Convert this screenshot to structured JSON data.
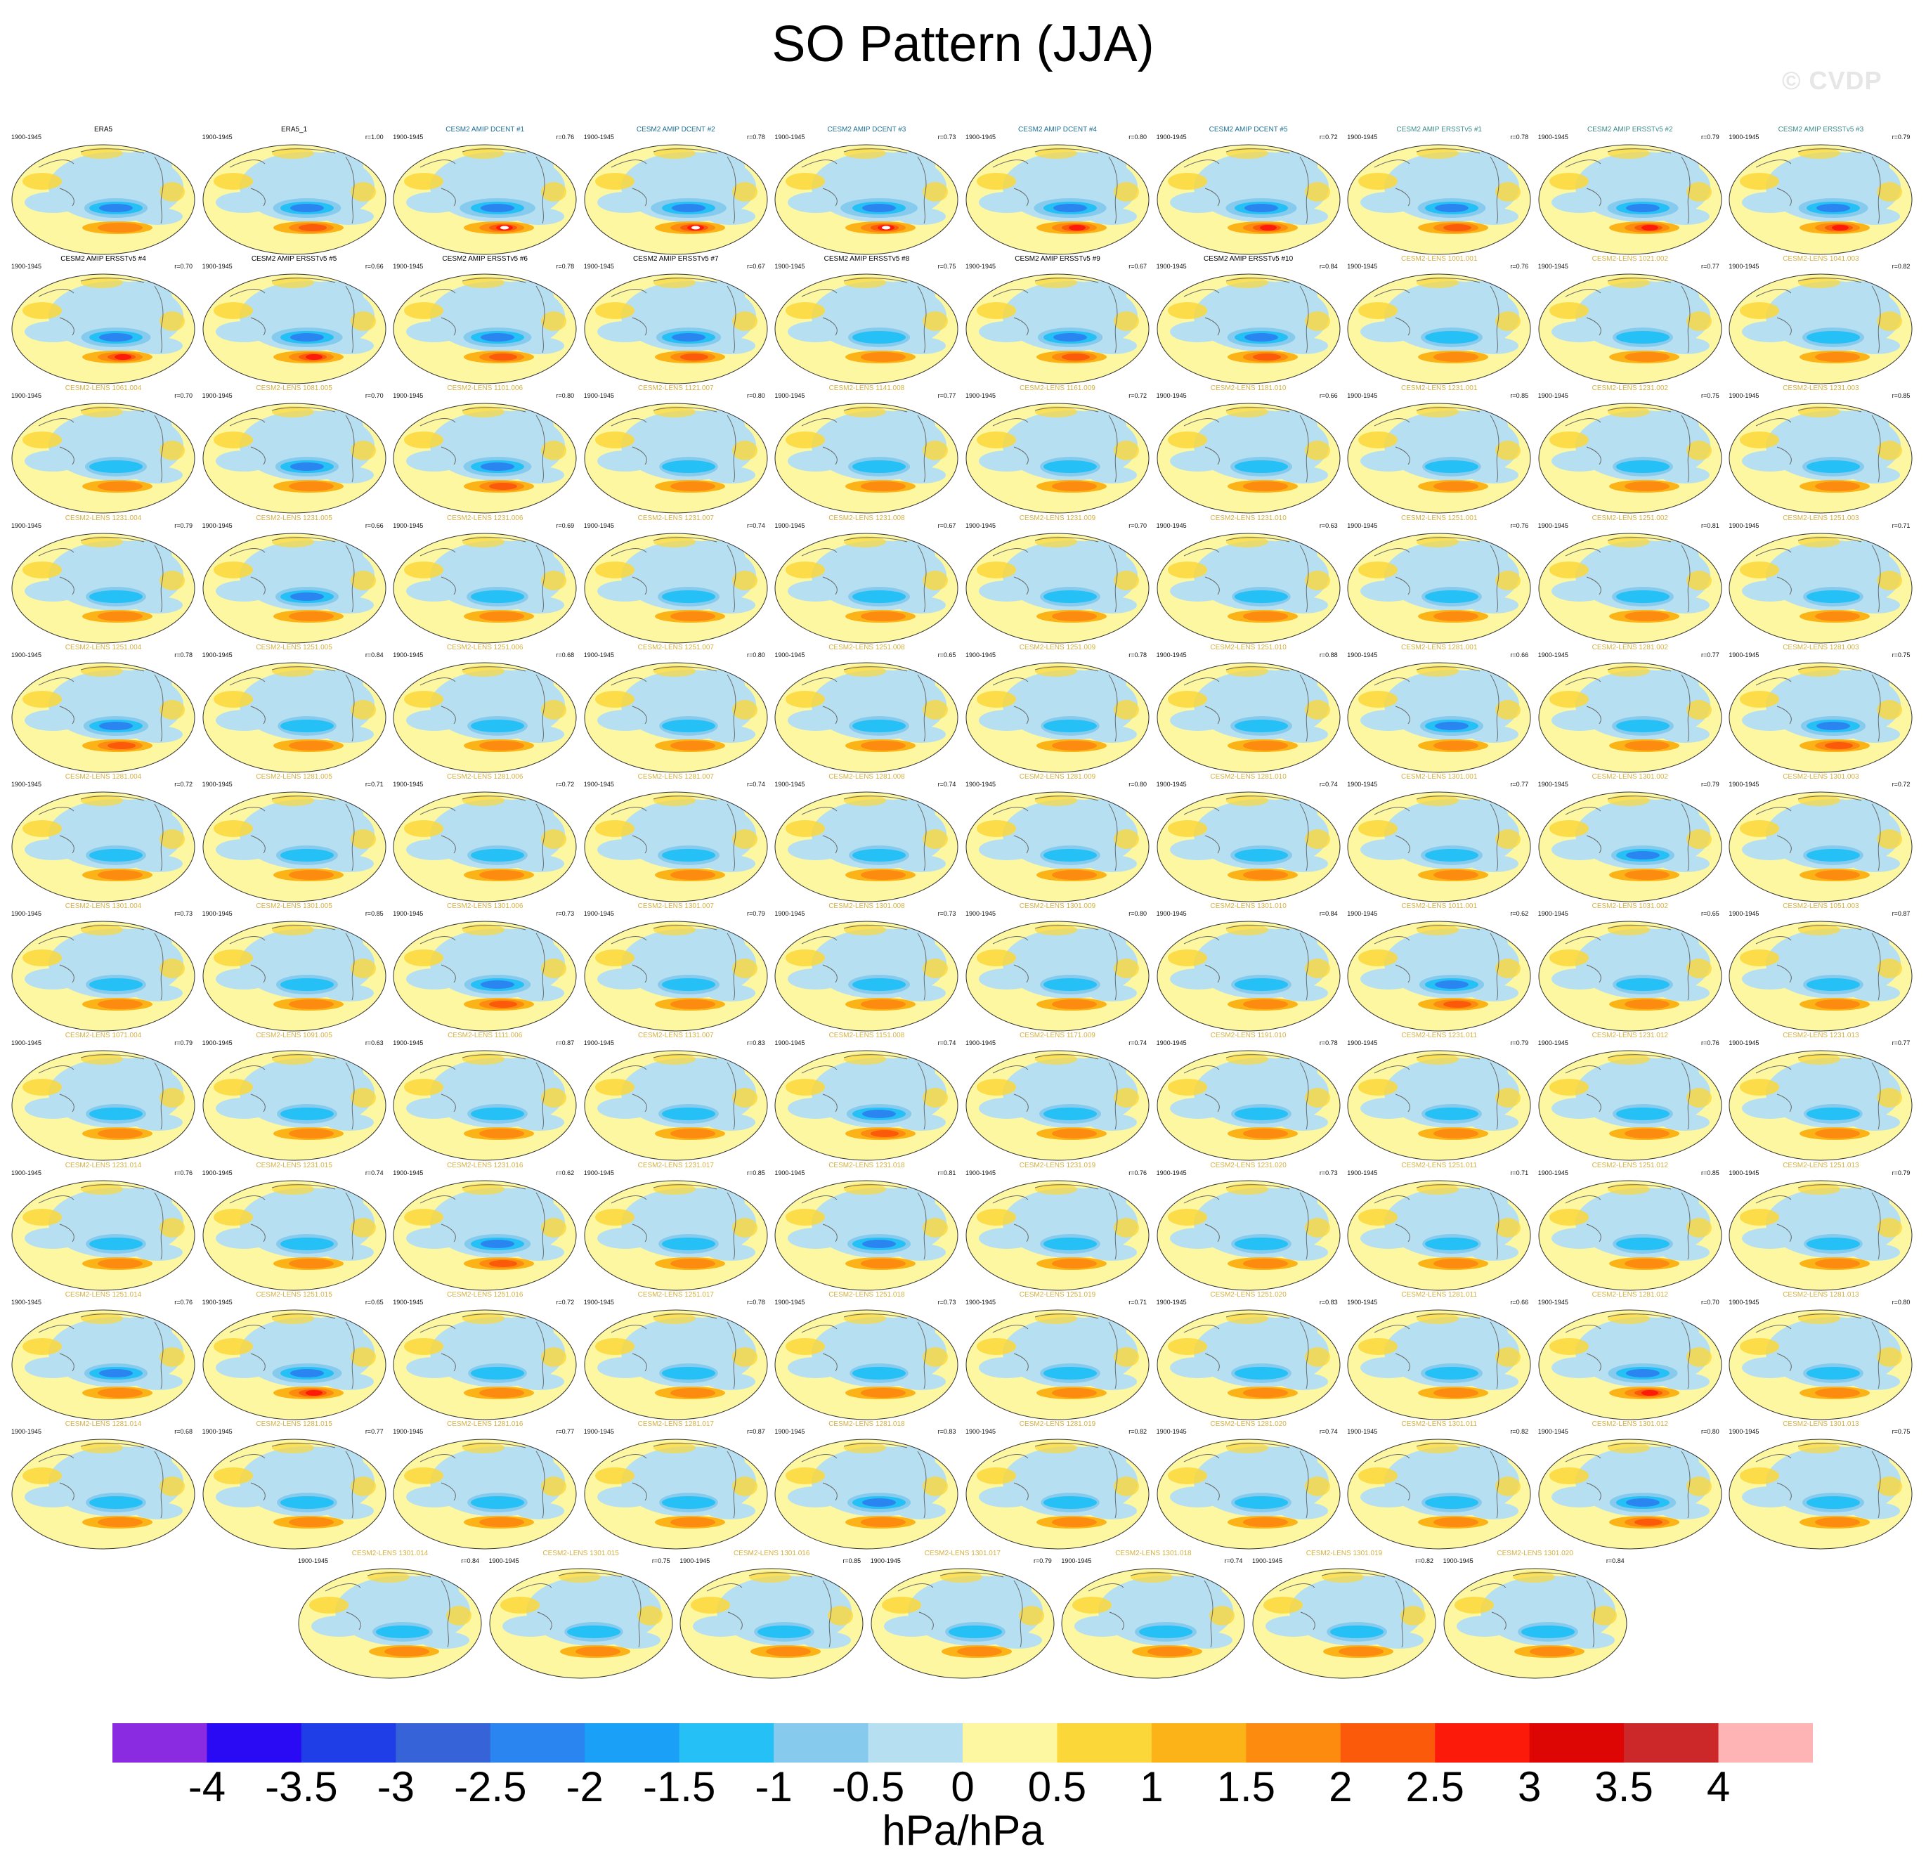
{
  "title": "SO Pattern (JJA)",
  "watermark": "© CVDP",
  "chart_data": {
    "type": "heatmap",
    "title": "SO Pattern (JJA)",
    "units": "hPa/hPa",
    "colorbar": {
      "ticks": [
        "-4",
        "-3.5",
        "-3",
        "-2.5",
        "-2",
        "-1.5",
        "-1",
        "-0.5",
        "0",
        "0.5",
        "1",
        "1.5",
        "2",
        "2.5",
        "3",
        "3.5",
        "4"
      ],
      "colors": [
        "#8a2be2",
        "#2a0af5",
        "#1f3ee8",
        "#3663d8",
        "#2a85f0",
        "#1aa0f7",
        "#25c0f5",
        "#86cbee",
        "#b6e0f2",
        "#fcf7a0",
        "#fbd73a",
        "#fcb317",
        "#fc8b10",
        "#fb5a0a",
        "#fc1a0a",
        "#de0505",
        "#cc2829",
        "#feb4b4"
      ]
    },
    "panels": [
      {
        "title": "ERA5",
        "r": "",
        "period": "1900-1945",
        "type": "obs",
        "intensity": 0.55
      },
      {
        "title": "ERA5_1",
        "r": "r=1.00",
        "period": "1900-1945",
        "type": "obs",
        "intensity": 0.7
      },
      {
        "title": "CESM2 AMIP DCENT #1",
        "r": "r=0.76",
        "period": "1900-1945",
        "type": "amip",
        "intensity": 0.95
      },
      {
        "title": "CESM2 AMIP DCENT #2",
        "r": "r=0.78",
        "period": "1900-1945",
        "type": "amip",
        "intensity": 0.95
      },
      {
        "title": "CESM2 AMIP DCENT #3",
        "r": "r=0.73",
        "period": "1900-1945",
        "type": "amip",
        "intensity": 1.0
      },
      {
        "title": "CESM2 AMIP DCENT #4",
        "r": "r=0.80",
        "period": "1900-1945",
        "type": "amip",
        "intensity": 0.85
      },
      {
        "title": "CESM2 AMIP DCENT #5",
        "r": "r=0.72",
        "period": "1900-1945",
        "type": "amip",
        "intensity": 0.8
      },
      {
        "title": "CESM2 AMIP ERSSTv5 #1",
        "r": "r=0.78",
        "period": "1900-1945",
        "type": "ersst",
        "intensity": 0.7
      },
      {
        "title": "CESM2 AMIP ERSSTv5 #2",
        "r": "r=0.79",
        "period": "1900-1945",
        "type": "ersst",
        "intensity": 0.8
      },
      {
        "title": "CESM2 AMIP ERSSTv5 #3",
        "r": "r=0.79",
        "period": "1900-1945",
        "type": "ersst",
        "intensity": 0.75
      },
      {
        "title": "CESM2 AMIP ERSSTv5 #4",
        "r": "r=0.70",
        "period": "1900-1945",
        "type": "obs",
        "intensity": 0.75
      },
      {
        "title": "CESM2 AMIP ERSSTv5 #5",
        "r": "r=0.66",
        "period": "1900-1945",
        "type": "obs",
        "intensity": 0.8
      },
      {
        "title": "CESM2 AMIP ERSSTv5 #6",
        "r": "r=0.78",
        "period": "1900-1945",
        "type": "obs",
        "intensity": 0.7
      },
      {
        "title": "CESM2 AMIP ERSSTv5 #7",
        "r": "r=0.67",
        "period": "1900-1945",
        "type": "obs",
        "intensity": 0.6
      },
      {
        "title": "CESM2 AMIP ERSSTv5 #8",
        "r": "r=0.75",
        "period": "1900-1945",
        "type": "obs",
        "intensity": 0.5
      },
      {
        "title": "CESM2 AMIP ERSSTv5 #9",
        "r": "r=0.67",
        "period": "1900-1945",
        "type": "obs",
        "intensity": 0.6
      },
      {
        "title": "CESM2 AMIP ERSSTv5 #10",
        "r": "r=0.84",
        "period": "1900-1945",
        "type": "obs",
        "intensity": 0.7
      },
      {
        "title": "CESM2-LENS 1001.001",
        "r": "r=0.76",
        "period": "1900-1945",
        "type": "lens",
        "intensity": 0.5
      },
      {
        "title": "CESM2-LENS 1021.002",
        "r": "r=0.77",
        "period": "1900-1945",
        "type": "lens",
        "intensity": 0.45
      },
      {
        "title": "CESM2-LENS 1041.003",
        "r": "r=0.82",
        "period": "1900-1945",
        "type": "lens",
        "intensity": 0.5
      },
      {
        "title": "CESM2-LENS 1061.004",
        "r": "r=0.70",
        "period": "1900-1945",
        "type": "lens",
        "intensity": 0.5
      },
      {
        "title": "CESM2-LENS 1081.005",
        "r": "r=0.70",
        "period": "1900-1945",
        "type": "lens",
        "intensity": 0.55
      },
      {
        "title": "CESM2-LENS 1101.006",
        "r": "r=0.80",
        "period": "1900-1945",
        "type": "lens",
        "intensity": 0.7
      },
      {
        "title": "CESM2-LENS 1121.007",
        "r": "r=0.80",
        "period": "1900-1945",
        "type": "lens",
        "intensity": 0.4
      },
      {
        "title": "CESM2-LENS 1141.008",
        "r": "r=0.77",
        "period": "1900-1945",
        "type": "lens",
        "intensity": 0.5
      },
      {
        "title": "CESM2-LENS 1161.009",
        "r": "r=0.72",
        "period": "1900-1945",
        "type": "lens",
        "intensity": 0.45
      },
      {
        "title": "CESM2-LENS 1181.010",
        "r": "r=0.66",
        "period": "1900-1945",
        "type": "lens",
        "intensity": 0.5
      },
      {
        "title": "CESM2-LENS 1231.001",
        "r": "r=0.85",
        "period": "1900-1945",
        "type": "lens",
        "intensity": 0.4
      },
      {
        "title": "CESM2-LENS 1231.002",
        "r": "r=0.75",
        "period": "1900-1945",
        "type": "lens",
        "intensity": 0.45
      },
      {
        "title": "CESM2-LENS 1231.003",
        "r": "r=0.85",
        "period": "1900-1945",
        "type": "lens",
        "intensity": 0.5
      },
      {
        "title": "CESM2-LENS 1231.004",
        "r": "r=0.79",
        "period": "1900-1945",
        "type": "lens",
        "intensity": 0.45
      },
      {
        "title": "CESM2-LENS 1231.005",
        "r": "r=0.66",
        "period": "1900-1945",
        "type": "lens",
        "intensity": 0.55
      },
      {
        "title": "CESM2-LENS 1231.006",
        "r": "r=0.69",
        "period": "1900-1945",
        "type": "lens",
        "intensity": 0.5
      },
      {
        "title": "CESM2-LENS 1231.007",
        "r": "r=0.74",
        "period": "1900-1945",
        "type": "lens",
        "intensity": 0.5
      },
      {
        "title": "CESM2-LENS 1231.008",
        "r": "r=0.67",
        "period": "1900-1945",
        "type": "lens",
        "intensity": 0.5
      },
      {
        "title": "CESM2-LENS 1231.009",
        "r": "r=0.70",
        "period": "1900-1945",
        "type": "lens",
        "intensity": 0.45
      },
      {
        "title": "CESM2-LENS 1231.010",
        "r": "r=0.63",
        "period": "1900-1945",
        "type": "lens",
        "intensity": 0.4
      },
      {
        "title": "CESM2-LENS 1251.001",
        "r": "r=0.76",
        "period": "1900-1945",
        "type": "lens",
        "intensity": 0.45
      },
      {
        "title": "CESM2-LENS 1251.002",
        "r": "r=0.81",
        "period": "1900-1945",
        "type": "lens",
        "intensity": 0.5
      },
      {
        "title": "CESM2-LENS 1251.003",
        "r": "r=0.71",
        "period": "1900-1945",
        "type": "lens",
        "intensity": 0.45
      },
      {
        "title": "CESM2-LENS 1251.004",
        "r": "r=0.78",
        "period": "1900-1945",
        "type": "lens",
        "intensity": 0.6
      },
      {
        "title": "CESM2-LENS 1251.005",
        "r": "r=0.84",
        "period": "1900-1945",
        "type": "lens",
        "intensity": 0.4
      },
      {
        "title": "CESM2-LENS 1251.006",
        "r": "r=0.68",
        "period": "1900-1945",
        "type": "lens",
        "intensity": 0.45
      },
      {
        "title": "CESM2-LENS 1251.007",
        "r": "r=0.80",
        "period": "1900-1945",
        "type": "lens",
        "intensity": 0.4
      },
      {
        "title": "CESM2-LENS 1251.008",
        "r": "r=0.65",
        "period": "1900-1945",
        "type": "lens",
        "intensity": 0.45
      },
      {
        "title": "CESM2-LENS 1251.009",
        "r": "r=0.78",
        "period": "1900-1945",
        "type": "lens",
        "intensity": 0.4
      },
      {
        "title": "CESM2-LENS 1251.010",
        "r": "r=0.88",
        "period": "1900-1945",
        "type": "lens",
        "intensity": 0.5
      },
      {
        "title": "CESM2-LENS 1281.001",
        "r": "r=0.66",
        "period": "1900-1945",
        "type": "lens",
        "intensity": 0.55
      },
      {
        "title": "CESM2-LENS 1281.002",
        "r": "r=0.77",
        "period": "1900-1945",
        "type": "lens",
        "intensity": 0.5
      },
      {
        "title": "CESM2-LENS 1281.003",
        "r": "r=0.75",
        "period": "1900-1945",
        "type": "lens",
        "intensity": 0.6
      },
      {
        "title": "CESM2-LENS 1281.004",
        "r": "r=0.72",
        "period": "1900-1945",
        "type": "lens",
        "intensity": 0.45
      },
      {
        "title": "CESM2-LENS 1281.005",
        "r": "r=0.71",
        "period": "1900-1945",
        "type": "lens",
        "intensity": 0.5
      },
      {
        "title": "CESM2-LENS 1281.006",
        "r": "r=0.72",
        "period": "1900-1945",
        "type": "lens",
        "intensity": 0.45
      },
      {
        "title": "CESM2-LENS 1281.007",
        "r": "r=0.74",
        "period": "1900-1945",
        "type": "lens",
        "intensity": 0.5
      },
      {
        "title": "CESM2-LENS 1281.008",
        "r": "r=0.74",
        "period": "1900-1945",
        "type": "lens",
        "intensity": 0.45
      },
      {
        "title": "CESM2-LENS 1281.009",
        "r": "r=0.80",
        "period": "1900-1945",
        "type": "lens",
        "intensity": 0.45
      },
      {
        "title": "CESM2-LENS 1281.010",
        "r": "r=0.74",
        "period": "1900-1945",
        "type": "lens",
        "intensity": 0.5
      },
      {
        "title": "CESM2-LENS 1301.001",
        "r": "r=0.77",
        "period": "1900-1945",
        "type": "lens",
        "intensity": 0.5
      },
      {
        "title": "CESM2-LENS 1301.002",
        "r": "r=0.79",
        "period": "1900-1945",
        "type": "lens",
        "intensity": 0.55
      },
      {
        "title": "CESM2-LENS 1301.003",
        "r": "r=0.72",
        "period": "1900-1945",
        "type": "lens",
        "intensity": 0.45
      },
      {
        "title": "CESM2-LENS 1301.004",
        "r": "r=0.73",
        "period": "1900-1945",
        "type": "lens",
        "intensity": 0.45
      },
      {
        "title": "CESM2-LENS 1301.005",
        "r": "r=0.85",
        "period": "1900-1945",
        "type": "lens",
        "intensity": 0.5
      },
      {
        "title": "CESM2-LENS 1301.006",
        "r": "r=0.73",
        "period": "1900-1945",
        "type": "lens",
        "intensity": 0.65
      },
      {
        "title": "CESM2-LENS 1301.007",
        "r": "r=0.79",
        "period": "1900-1945",
        "type": "lens",
        "intensity": 0.5
      },
      {
        "title": "CESM2-LENS 1301.008",
        "r": "r=0.73",
        "period": "1900-1945",
        "type": "lens",
        "intensity": 0.5
      },
      {
        "title": "CESM2-LENS 1301.009",
        "r": "r=0.80",
        "period": "1900-1945",
        "type": "lens",
        "intensity": 0.45
      },
      {
        "title": "CESM2-LENS 1301.010",
        "r": "r=0.84",
        "period": "1900-1945",
        "type": "lens",
        "intensity": 0.45
      },
      {
        "title": "CESM2-LENS 1011.001",
        "r": "r=0.62",
        "period": "1900-1945",
        "type": "lens",
        "intensity": 0.6
      },
      {
        "title": "CESM2-LENS 1031.002",
        "r": "r=0.65",
        "period": "1900-1945",
        "type": "lens",
        "intensity": 0.45
      },
      {
        "title": "CESM2-LENS 1051.003",
        "r": "r=0.87",
        "period": "1900-1945",
        "type": "lens",
        "intensity": 0.45
      },
      {
        "title": "CESM2-LENS 1071.004",
        "r": "r=0.79",
        "period": "1900-1945",
        "type": "lens",
        "intensity": 0.45
      },
      {
        "title": "CESM2-LENS 1091.005",
        "r": "r=0.63",
        "period": "1900-1945",
        "type": "lens",
        "intensity": 0.45
      },
      {
        "title": "CESM2-LENS 1111.006",
        "r": "r=0.87",
        "period": "1900-1945",
        "type": "lens",
        "intensity": 0.45
      },
      {
        "title": "CESM2-LENS 1131.007",
        "r": "r=0.83",
        "period": "1900-1945",
        "type": "lens",
        "intensity": 0.45
      },
      {
        "title": "CESM2-LENS 1151.008",
        "r": "r=0.74",
        "period": "1900-1945",
        "type": "lens",
        "intensity": 0.6
      },
      {
        "title": "CESM2-LENS 1171.009",
        "r": "r=0.74",
        "period": "1900-1945",
        "type": "lens",
        "intensity": 0.5
      },
      {
        "title": "CESM2-LENS 1191.010",
        "r": "r=0.78",
        "period": "1900-1945",
        "type": "lens",
        "intensity": 0.45
      },
      {
        "title": "CESM2-LENS 1231.011",
        "r": "r=0.79",
        "period": "1900-1945",
        "type": "lens",
        "intensity": 0.45
      },
      {
        "title": "CESM2-LENS 1231.012",
        "r": "r=0.76",
        "period": "1900-1945",
        "type": "lens",
        "intensity": 0.45
      },
      {
        "title": "CESM2-LENS 1231.013",
        "r": "r=0.77",
        "period": "1900-1945",
        "type": "lens",
        "intensity": 0.4
      },
      {
        "title": "CESM2-LENS 1231.014",
        "r": "r=0.76",
        "period": "1900-1945",
        "type": "lens",
        "intensity": 0.45
      },
      {
        "title": "CESM2-LENS 1231.015",
        "r": "r=0.74",
        "period": "1900-1945",
        "type": "lens",
        "intensity": 0.5
      },
      {
        "title": "CESM2-LENS 1231.016",
        "r": "r=0.62",
        "period": "1900-1945",
        "type": "lens",
        "intensity": 0.65
      },
      {
        "title": "CESM2-LENS 1231.017",
        "r": "r=0.85",
        "period": "1900-1945",
        "type": "lens",
        "intensity": 0.45
      },
      {
        "title": "CESM2-LENS 1231.018",
        "r": "r=0.81",
        "period": "1900-1945",
        "type": "lens",
        "intensity": 0.55
      },
      {
        "title": "CESM2-LENS 1231.019",
        "r": "r=0.76",
        "period": "1900-1945",
        "type": "lens",
        "intensity": 0.45
      },
      {
        "title": "CESM2-LENS 1231.020",
        "r": "r=0.73",
        "period": "1900-1945",
        "type": "lens",
        "intensity": 0.45
      },
      {
        "title": "CESM2-LENS 1251.011",
        "r": "r=0.71",
        "period": "1900-1945",
        "type": "lens",
        "intensity": 0.4
      },
      {
        "title": "CESM2-LENS 1251.012",
        "r": "r=0.85",
        "period": "1900-1945",
        "type": "lens",
        "intensity": 0.45
      },
      {
        "title": "CESM2-LENS 1251.013",
        "r": "r=0.79",
        "period": "1900-1945",
        "type": "lens",
        "intensity": 0.4
      },
      {
        "title": "CESM2-LENS 1251.014",
        "r": "r=0.76",
        "period": "1900-1945",
        "type": "lens",
        "intensity": 0.55
      },
      {
        "title": "CESM2-LENS 1251.015",
        "r": "r=0.65",
        "period": "1900-1945",
        "type": "lens",
        "intensity": 0.75
      },
      {
        "title": "CESM2-LENS 1251.016",
        "r": "r=0.72",
        "period": "1900-1945",
        "type": "lens",
        "intensity": 0.4
      },
      {
        "title": "CESM2-LENS 1251.017",
        "r": "r=0.78",
        "period": "1900-1945",
        "type": "lens",
        "intensity": 0.4
      },
      {
        "title": "CESM2-LENS 1251.018",
        "r": "r=0.73",
        "period": "1900-1945",
        "type": "lens",
        "intensity": 0.4
      },
      {
        "title": "CESM2-LENS 1251.019",
        "r": "r=0.71",
        "period": "1900-1945",
        "type": "lens",
        "intensity": 0.45
      },
      {
        "title": "CESM2-LENS 1251.020",
        "r": "r=0.83",
        "period": "1900-1945",
        "type": "lens",
        "intensity": 0.45
      },
      {
        "title": "CESM2-LENS 1281.011",
        "r": "r=0.66",
        "period": "1900-1945",
        "type": "lens",
        "intensity": 0.5
      },
      {
        "title": "CESM2-LENS 1281.012",
        "r": "r=0.70",
        "period": "1900-1945",
        "type": "lens",
        "intensity": 0.75
      },
      {
        "title": "CESM2-LENS 1281.013",
        "r": "r=0.80",
        "period": "1900-1945",
        "type": "lens",
        "intensity": 0.45
      },
      {
        "title": "CESM2-LENS 1281.014",
        "r": "r=0.68",
        "period": "1900-1945",
        "type": "lens",
        "intensity": 0.45
      },
      {
        "title": "CESM2-LENS 1281.015",
        "r": "r=0.77",
        "period": "1900-1945",
        "type": "lens",
        "intensity": 0.45
      },
      {
        "title": "CESM2-LENS 1281.016",
        "r": "r=0.77",
        "period": "1900-1945",
        "type": "lens",
        "intensity": 0.45
      },
      {
        "title": "CESM2-LENS 1281.017",
        "r": "r=0.87",
        "period": "1900-1945",
        "type": "lens",
        "intensity": 0.4
      },
      {
        "title": "CESM2-LENS 1281.018",
        "r": "r=0.83",
        "period": "1900-1945",
        "type": "lens",
        "intensity": 0.55
      },
      {
        "title": "CESM2-LENS 1281.019",
        "r": "r=0.82",
        "period": "1900-1945",
        "type": "lens",
        "intensity": 0.4
      },
      {
        "title": "CESM2-LENS 1281.020",
        "r": "r=0.74",
        "period": "1900-1945",
        "type": "lens",
        "intensity": 0.45
      },
      {
        "title": "CESM2-LENS 1301.011",
        "r": "r=0.82",
        "period": "1900-1945",
        "type": "lens",
        "intensity": 0.45
      },
      {
        "title": "CESM2-LENS 1301.012",
        "r": "r=0.80",
        "period": "1900-1945",
        "type": "lens",
        "intensity": 0.65
      },
      {
        "title": "CESM2-LENS 1301.013",
        "r": "r=0.75",
        "period": "1900-1945",
        "type": "lens",
        "intensity": 0.5
      },
      {
        "title": "CESM2-LENS 1301.014",
        "r": "r=0.84",
        "period": "1900-1945",
        "type": "lens",
        "intensity": 0.45
      },
      {
        "title": "CESM2-LENS 1301.015",
        "r": "r=0.75",
        "period": "1900-1945",
        "type": "lens",
        "intensity": 0.4
      },
      {
        "title": "CESM2-LENS 1301.016",
        "r": "r=0.85",
        "period": "1900-1945",
        "type": "lens",
        "intensity": 0.45
      },
      {
        "title": "CESM2-LENS 1301.017",
        "r": "r=0.79",
        "period": "1900-1945",
        "type": "lens",
        "intensity": 0.45
      },
      {
        "title": "CESM2-LENS 1301.018",
        "r": "r=0.74",
        "period": "1900-1945",
        "type": "lens",
        "intensity": 0.5
      },
      {
        "title": "CESM2-LENS 1301.019",
        "r": "r=0.82",
        "period": "1900-1945",
        "type": "lens",
        "intensity": 0.45
      },
      {
        "title": "CESM2-LENS 1301.020",
        "r": "r=0.84",
        "period": "1900-1945",
        "type": "lens",
        "intensity": 0.45
      }
    ],
    "title_colors": {
      "obs": "#000000",
      "amip": "#1d6e96",
      "ersst": "#3c8a8a",
      "lens": "#d4b040"
    }
  }
}
